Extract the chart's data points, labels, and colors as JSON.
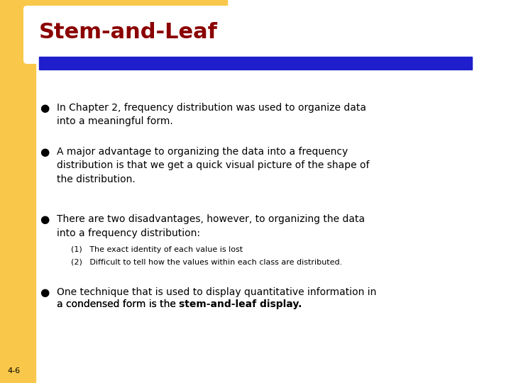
{
  "title": "Stem-and-Leaf",
  "title_color": "#8B0000",
  "title_fontsize": 22,
  "title_fontweight": "bold",
  "title_font": "DejaVu Sans",
  "bg_color": "#FFFFFF",
  "left_panel_color": "#F9C84A",
  "blue_bar_color": "#1E1ECC",
  "footer_text": "4-6",
  "footer_color": "#000000",
  "footer_fontsize": 8,
  "bullet_fontsize": 10,
  "bullet_font": "DejaVu Sans",
  "sub_bullet_fontsize": 8,
  "bullets": [
    "In Chapter 2, frequency distribution was used to organize data\ninto a meaningful form.",
    "A major advantage to organizing the data into a frequency\ndistribution is that we get a quick visual picture of the shape of\nthe distribution.",
    "There are two disadvantages, however, to organizing the data\ninto a frequency distribution:"
  ],
  "sub_bullets": [
    "(1)   The exact identity of each value is lost",
    "(2)   Difficult to tell how the values within each class are distributed."
  ],
  "last_bullet_regular": "One technique that is used to display quantitative information in\na condensed form is the ",
  "last_bullet_bold": "stem-and-leaf display.",
  "last_bullet_fontsize": 10
}
